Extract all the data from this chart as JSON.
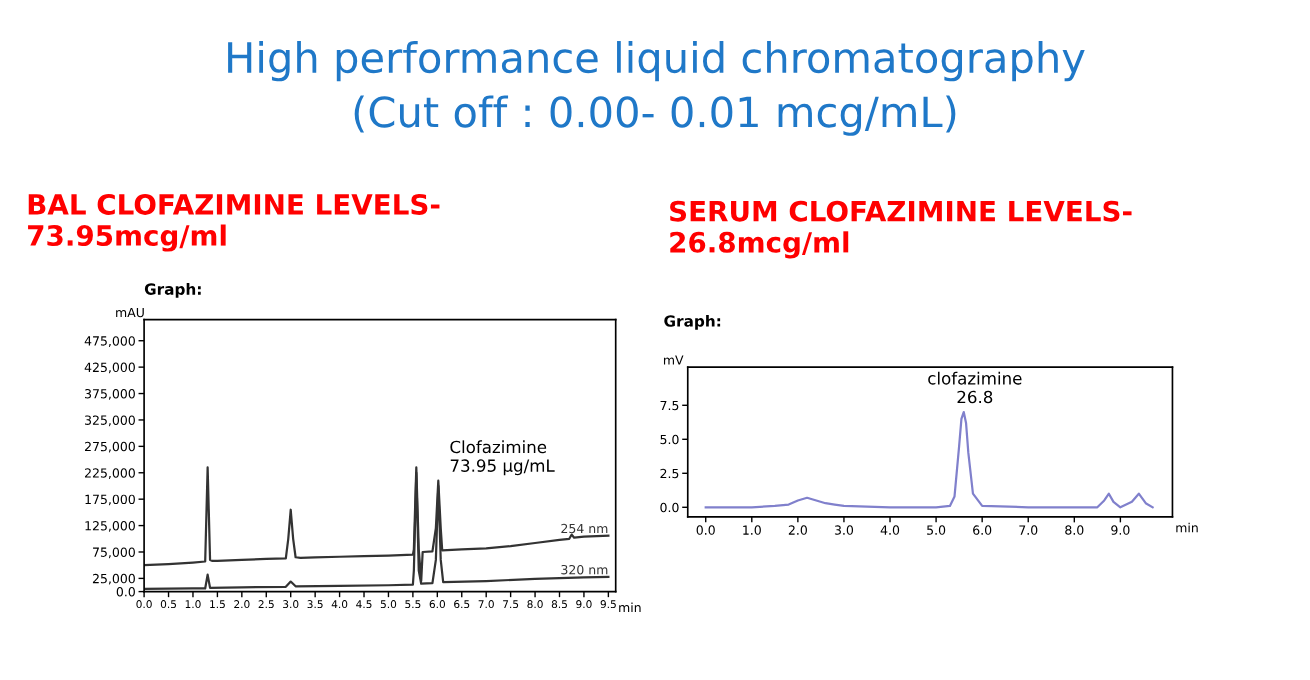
{
  "chart_data": [
    {
      "type": "other",
      "title": "High performance liquid chromatography",
      "subtitle": "(Cut off : 0.00- 0.01 mcg/mL)"
    },
    {
      "type": "line",
      "title": "BAL CLOFAZIMINE LEVELS-\n73.95mcg/ml",
      "xlabel": "min",
      "ylabel": "mAU",
      "legend": false,
      "grid": false,
      "marker": "none",
      "line_style": "solid",
      "xlim": [
        0,
        9.65
      ],
      "ylim": [
        0,
        515000
      ],
      "xticks": [
        {
          "value": 0,
          "label": "0.0"
        },
        {
          "value": 0.5,
          "label": "0.5"
        },
        {
          "value": 1,
          "label": "1.0"
        },
        {
          "value": 1.5,
          "label": "1.5"
        },
        {
          "value": 2,
          "label": "2.0"
        },
        {
          "value": 2.5,
          "label": "2.5"
        },
        {
          "value": 3,
          "label": "3.0"
        },
        {
          "value": 3.5,
          "label": "3.5"
        },
        {
          "value": 4,
          "label": "4.0"
        },
        {
          "value": 4.5,
          "label": "4.5"
        },
        {
          "value": 5,
          "label": "5.0"
        },
        {
          "value": 5.5,
          "label": "5.5"
        },
        {
          "value": 6,
          "label": "6.0"
        },
        {
          "value": 6.5,
          "label": "6.5"
        },
        {
          "value": 7,
          "label": "7.0"
        },
        {
          "value": 7.5,
          "label": "7.5"
        },
        {
          "value": 8,
          "label": "8.0"
        },
        {
          "value": 8.5,
          "label": "8.5"
        },
        {
          "value": 9,
          "label": "9.0"
        },
        {
          "value": 9.5,
          "label": "9.5"
        }
      ],
      "yticks": [
        {
          "value": 0,
          "label": "0.0"
        },
        {
          "value": 25000,
          "label": "25,000"
        },
        {
          "value": 75000,
          "label": "75,000"
        },
        {
          "value": 125000,
          "label": "125,000"
        },
        {
          "value": 175000,
          "label": "175,000"
        },
        {
          "value": 225000,
          "label": "225,000"
        },
        {
          "value": 275000,
          "label": "275,000"
        },
        {
          "value": 325000,
          "label": "325,000"
        },
        {
          "value": 375000,
          "label": "375,000"
        },
        {
          "value": 425000,
          "label": "425,000"
        },
        {
          "value": 475000,
          "label": "475,000"
        }
      ],
      "series": [
        {
          "name": "254 nm",
          "color": "#333333",
          "x": [
            0,
            0.5,
            1.0,
            1.25,
            1.3,
            1.35,
            1.4,
            1.5,
            2.0,
            2.5,
            2.9,
            2.95,
            3.0,
            3.05,
            3.1,
            3.2,
            3.5,
            4.0,
            4.5,
            5.0,
            5.5,
            5.52,
            5.57,
            5.62,
            5.67,
            5.7,
            5.9,
            5.97,
            6.02,
            6.07,
            6.1,
            6.5,
            7.0,
            7.5,
            8.0,
            8.5,
            8.7,
            8.75,
            8.8,
            9.0,
            9.5
          ],
          "values": [
            50000,
            52000,
            55000,
            57000,
            235000,
            60000,
            58000,
            58000,
            60000,
            62000,
            63000,
            100000,
            155000,
            100000,
            65000,
            64000,
            65000,
            66000,
            67000,
            68000,
            70000,
            80000,
            235000,
            80000,
            20000,
            75000,
            76000,
            120000,
            210000,
            120000,
            78000,
            80000,
            82000,
            86000,
            92000,
            98000,
            100000,
            108000,
            102000,
            104000,
            106000
          ]
        },
        {
          "name": "320 nm",
          "color": "#333333",
          "x": [
            0,
            1.0,
            1.25,
            1.3,
            1.35,
            2.0,
            2.9,
            3.0,
            3.1,
            4.0,
            5.0,
            5.5,
            5.52,
            5.57,
            5.62,
            5.67,
            5.9,
            5.97,
            6.02,
            6.07,
            6.12,
            7.0,
            8.0,
            9.0,
            9.5
          ],
          "values": [
            5000,
            6000,
            6000,
            32000,
            7000,
            8000,
            9000,
            19000,
            10000,
            11000,
            12000,
            13000,
            40000,
            225000,
            40000,
            15000,
            16000,
            60000,
            200000,
            60000,
            18000,
            20000,
            24000,
            27000,
            28000
          ]
        }
      ],
      "annotations": [
        "Graph:",
        {
          "text": "Clofazimine\n73.95 μg/mL",
          "x": 6.02,
          "y": 210000
        }
      ]
    },
    {
      "type": "line",
      "title": "SERUM CLOFAZIMINE LEVELS-\n26.8mcg/ml",
      "xlabel": "min",
      "ylabel": "mV",
      "legend": false,
      "grid": false,
      "marker": "none",
      "line_style": "solid",
      "xlim": [
        -0.39,
        10.13
      ],
      "ylim": [
        -0.7,
        10.3
      ],
      "xticks": [
        {
          "value": 0,
          "label": "0.0"
        },
        {
          "value": 1,
          "label": "1.0"
        },
        {
          "value": 2,
          "label": "2.0"
        },
        {
          "value": 3,
          "label": "3.0"
        },
        {
          "value": 4,
          "label": "4.0"
        },
        {
          "value": 5,
          "label": "5.0"
        },
        {
          "value": 6,
          "label": "6.0"
        },
        {
          "value": 7,
          "label": "7.0"
        },
        {
          "value": 8,
          "label": "8.0"
        },
        {
          "value": 9,
          "label": "9.0"
        }
      ],
      "yticks": [
        {
          "value": 0,
          "label": "0.0"
        },
        2.5,
        {
          "value": 5,
          "label": "5.0"
        },
        7.5
      ],
      "series": [
        {
          "color": "#8080cc",
          "x": [
            0,
            1.0,
            1.5,
            1.8,
            2.0,
            2.2,
            2.4,
            2.6,
            2.8,
            3.0,
            4.0,
            5.0,
            5.3,
            5.4,
            5.5,
            5.55,
            5.6,
            5.65,
            5.7,
            5.8,
            6.0,
            7.0,
            8.0,
            8.5,
            8.65,
            8.75,
            8.85,
            9.0,
            9.25,
            9.4,
            9.55,
            9.7
          ],
          "values": [
            0,
            0,
            0.1,
            0.2,
            0.5,
            0.7,
            0.5,
            0.3,
            0.2,
            0.1,
            0,
            0,
            0.1,
            0.8,
            4.5,
            6.5,
            7.0,
            6.2,
            4.0,
            1.0,
            0.1,
            0,
            0,
            0,
            0.5,
            1.0,
            0.4,
            0,
            0.4,
            1.0,
            0.3,
            0
          ]
        }
      ],
      "annotations": [
        "Graph:",
        {
          "text": "clofazimine\n26.8",
          "x": 5.6,
          "y": 7.0
        }
      ]
    }
  ]
}
